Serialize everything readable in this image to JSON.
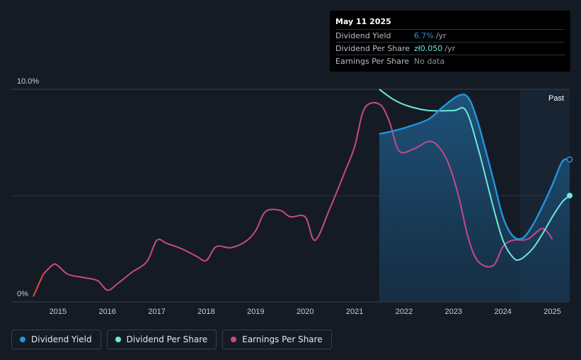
{
  "colors": {
    "background": "#151b24",
    "dividend_yield": "#2394df",
    "dividend_per_share": "#6ee7dd",
    "earnings_per_share": "#c8488a",
    "eps_negative": "#e8473c"
  },
  "tooltip": {
    "date": "May 11 2025",
    "rows": [
      {
        "label": "Dividend Yield",
        "value": "6.7%",
        "unit": "/yr",
        "color": "#2394df"
      },
      {
        "label": "Dividend Per Share",
        "value": "zł0.050",
        "unit": "/yr",
        "color": "#6ee7dd"
      },
      {
        "label": "Earnings Per Share",
        "value": "No data",
        "unit": "",
        "color": "#8a9099"
      }
    ]
  },
  "legend": [
    {
      "label": "Dividend Yield",
      "color": "#2394df"
    },
    {
      "label": "Dividend Per Share",
      "color": "#6ee7dd"
    },
    {
      "label": "Earnings Per Share",
      "color": "#c8488a"
    }
  ],
  "chart_data": {
    "type": "line",
    "title": "",
    "xlabel": "",
    "ylabel": "",
    "xlim": [
      2014.5,
      2025.35
    ],
    "ylim": [
      0,
      10
    ],
    "y_tick_labels": [
      "0%",
      "10.0%"
    ],
    "x_ticks": [
      2015,
      2016,
      2017,
      2018,
      2019,
      2020,
      2021,
      2022,
      2023,
      2024,
      2025
    ],
    "past_region": {
      "label": "Past",
      "start": 2024.35,
      "end": 2025.35
    },
    "gridlines": [
      5
    ],
    "series": [
      {
        "name": "Dividend Yield",
        "color": "#2394df",
        "filled": true,
        "points": [
          [
            2021.5,
            7.9
          ],
          [
            2021.8,
            8.05
          ],
          [
            2022.1,
            8.25
          ],
          [
            2022.5,
            8.6
          ],
          [
            2022.8,
            9.2
          ],
          [
            2023.1,
            9.7
          ],
          [
            2023.3,
            9.6
          ],
          [
            2023.5,
            8.4
          ],
          [
            2023.8,
            5.8
          ],
          [
            2024.0,
            4.0
          ],
          [
            2024.2,
            3.1
          ],
          [
            2024.4,
            3.0
          ],
          [
            2024.6,
            3.6
          ],
          [
            2024.8,
            4.5
          ],
          [
            2025.0,
            5.5
          ],
          [
            2025.2,
            6.6
          ],
          [
            2025.35,
            6.7
          ]
        ]
      },
      {
        "name": "Dividend Per Share",
        "color": "#6ee7dd",
        "filled": false,
        "points": [
          [
            2021.5,
            10.0
          ],
          [
            2021.8,
            9.5
          ],
          [
            2022.1,
            9.2
          ],
          [
            2022.5,
            9.0
          ],
          [
            2023.0,
            9.0
          ],
          [
            2023.25,
            9.0
          ],
          [
            2023.5,
            7.2
          ],
          [
            2023.8,
            4.5
          ],
          [
            2024.0,
            2.9
          ],
          [
            2024.2,
            2.1
          ],
          [
            2024.35,
            2.0
          ],
          [
            2024.6,
            2.5
          ],
          [
            2024.8,
            3.2
          ],
          [
            2025.0,
            4.0
          ],
          [
            2025.2,
            4.7
          ],
          [
            2025.35,
            5.0
          ]
        ]
      },
      {
        "name": "Earnings Per Share",
        "color": "#c8488a",
        "filled": false,
        "points": [
          [
            2014.5,
            0.25
          ],
          [
            2014.7,
            1.3
          ],
          [
            2014.9,
            1.75
          ],
          [
            2015.0,
            1.7
          ],
          [
            2015.2,
            1.3
          ],
          [
            2015.5,
            1.15
          ],
          [
            2015.8,
            1.0
          ],
          [
            2016.0,
            0.55
          ],
          [
            2016.2,
            0.85
          ],
          [
            2016.5,
            1.4
          ],
          [
            2016.8,
            1.9
          ],
          [
            2017.0,
            2.9
          ],
          [
            2017.2,
            2.75
          ],
          [
            2017.5,
            2.5
          ],
          [
            2017.8,
            2.15
          ],
          [
            2018.0,
            1.95
          ],
          [
            2018.2,
            2.6
          ],
          [
            2018.5,
            2.55
          ],
          [
            2018.8,
            2.85
          ],
          [
            2019.0,
            3.35
          ],
          [
            2019.2,
            4.25
          ],
          [
            2019.5,
            4.3
          ],
          [
            2019.7,
            4.0
          ],
          [
            2020.0,
            4.0
          ],
          [
            2020.2,
            2.9
          ],
          [
            2020.5,
            4.4
          ],
          [
            2020.8,
            6.1
          ],
          [
            2021.0,
            7.3
          ],
          [
            2021.2,
            9.1
          ],
          [
            2021.5,
            9.3
          ],
          [
            2021.7,
            8.5
          ],
          [
            2021.9,
            7.1
          ],
          [
            2022.2,
            7.2
          ],
          [
            2022.5,
            7.55
          ],
          [
            2022.7,
            7.3
          ],
          [
            2022.9,
            6.5
          ],
          [
            2023.1,
            5.0
          ],
          [
            2023.3,
            3.0
          ],
          [
            2023.5,
            1.9
          ],
          [
            2023.8,
            1.7
          ],
          [
            2024.0,
            2.6
          ],
          [
            2024.2,
            2.9
          ],
          [
            2024.5,
            2.95
          ],
          [
            2024.8,
            3.45
          ],
          [
            2025.0,
            2.95
          ]
        ]
      }
    ]
  }
}
